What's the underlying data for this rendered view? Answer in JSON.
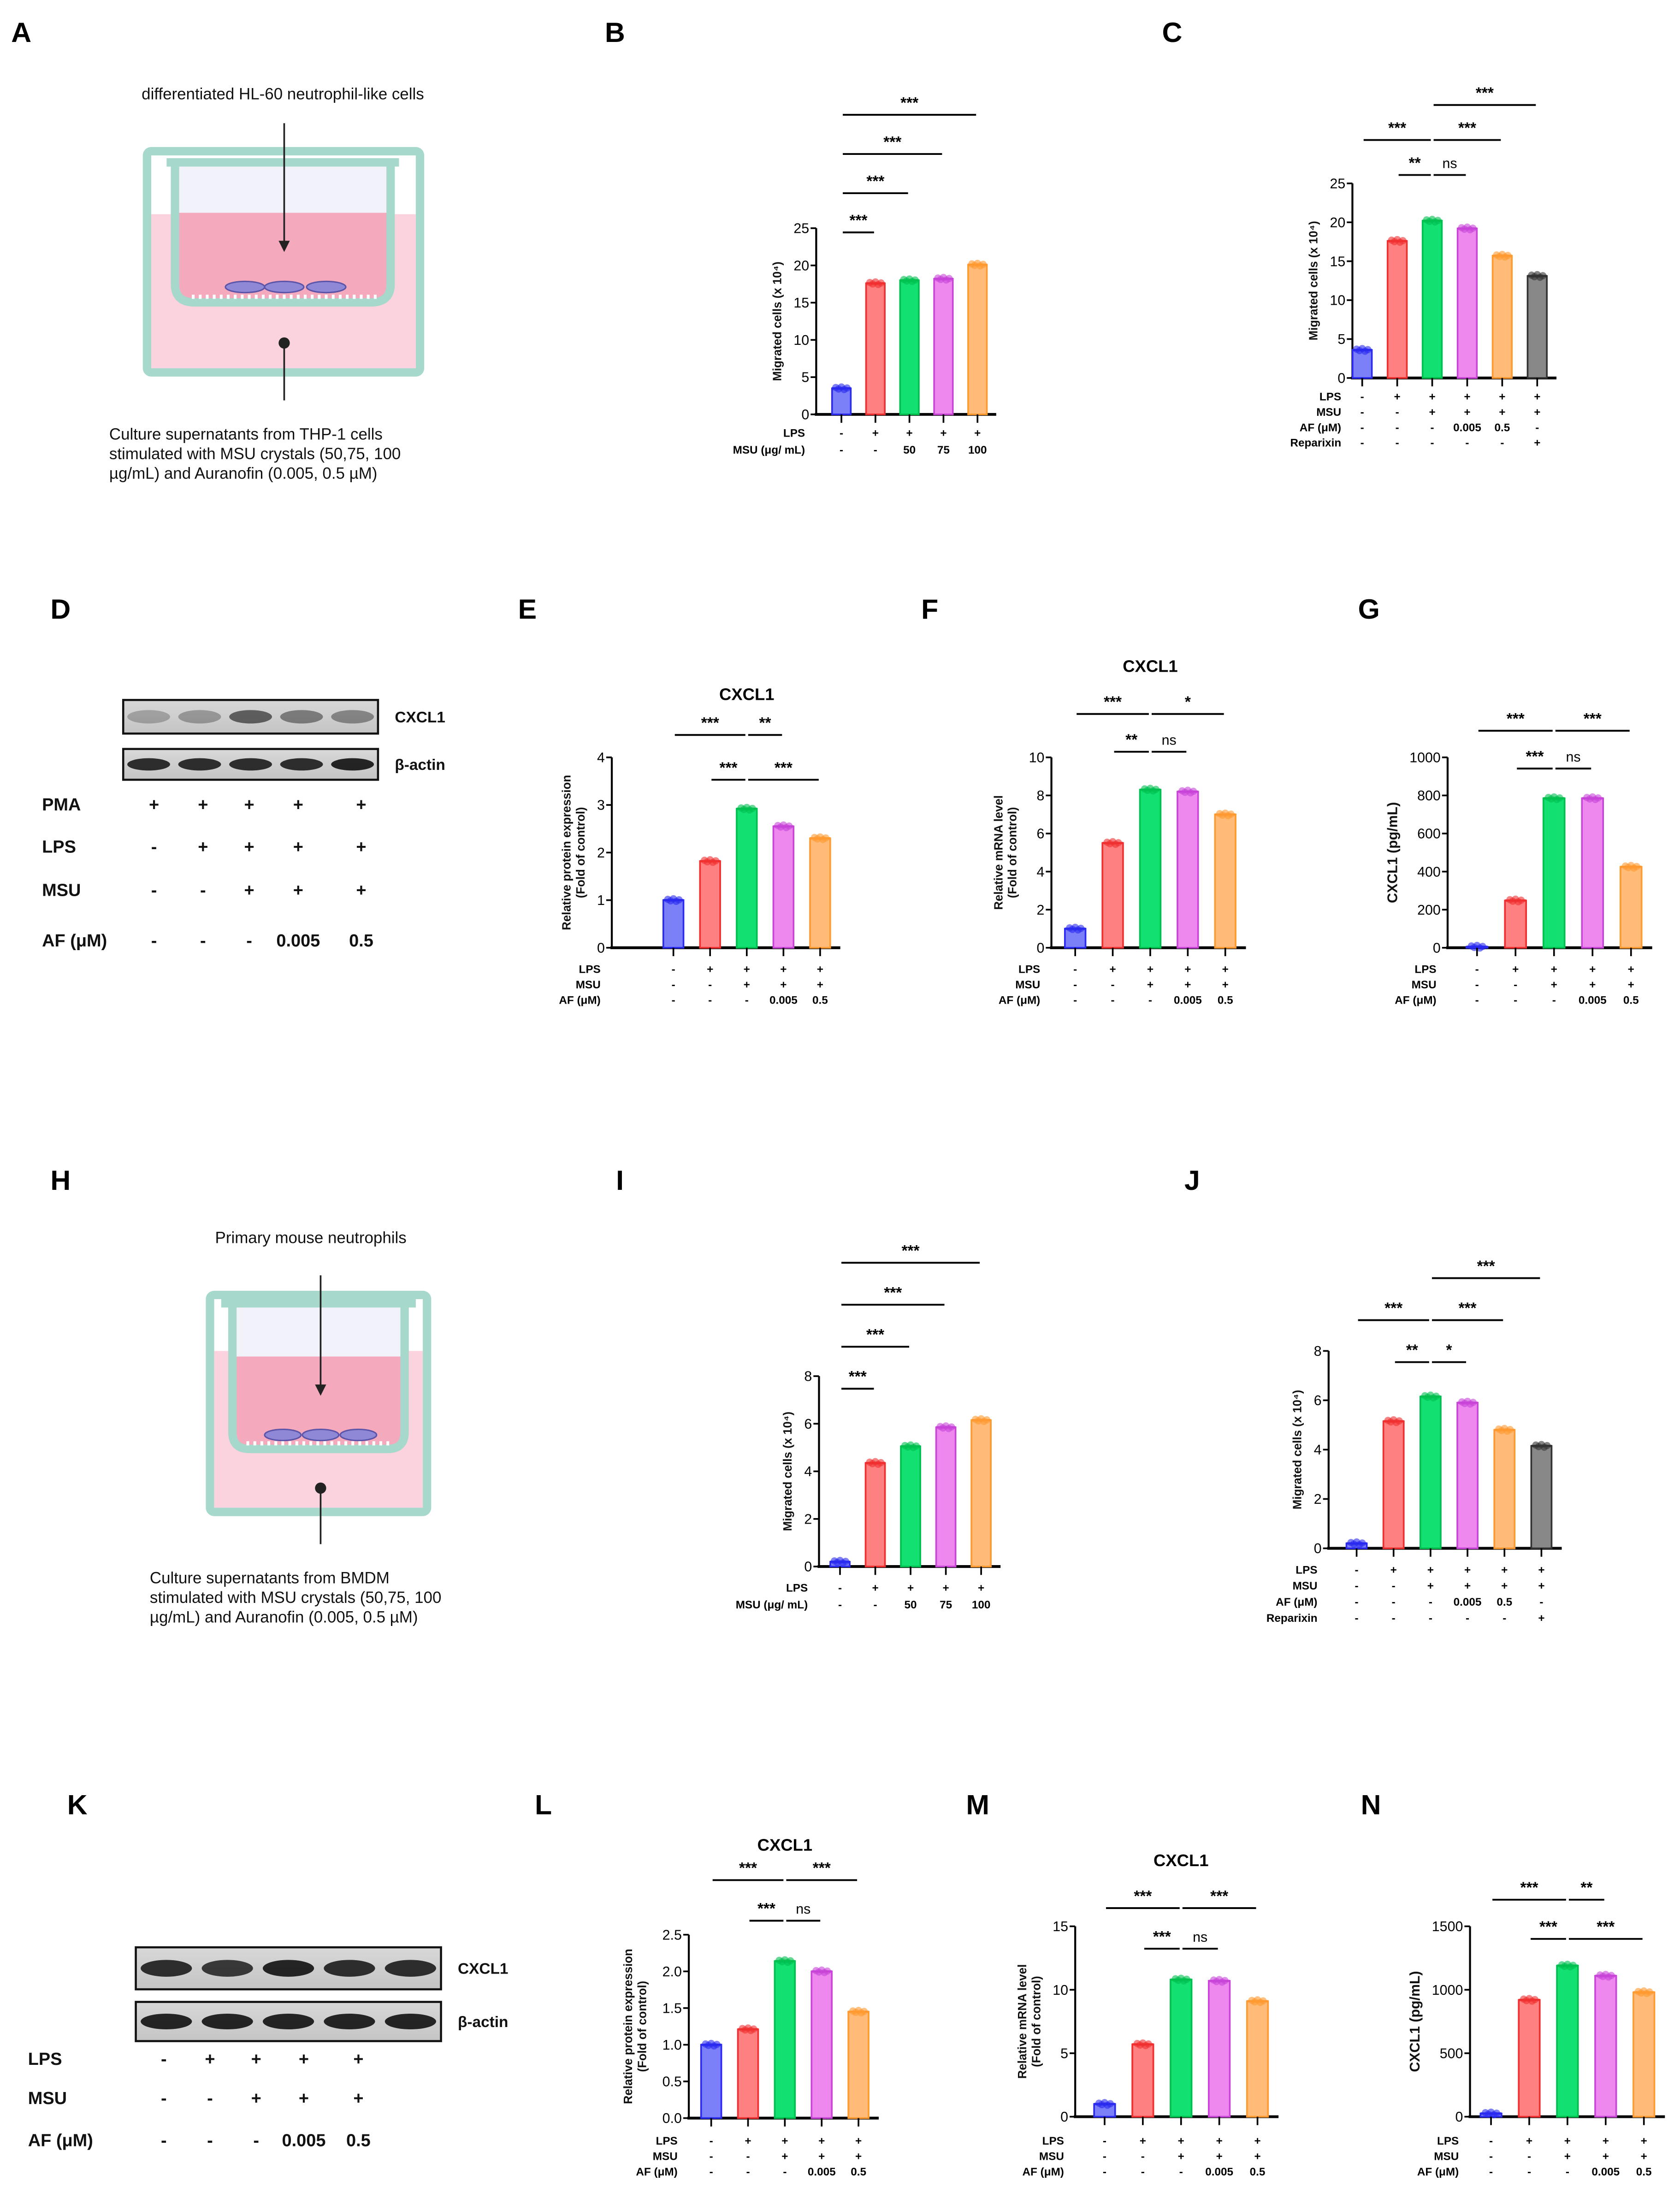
{
  "panel_letters": [
    "A",
    "B",
    "C",
    "D",
    "E",
    "F",
    "G",
    "H",
    "I",
    "J",
    "K",
    "L",
    "M",
    "N"
  ],
  "schematic_a": {
    "top_label": "differentiated HL-60 neutrophil-like cells",
    "caption": [
      "Culture supernatants from THP-1 cells",
      "stimulated with MSU crystals (50,75, 100",
      "µg/mL) and Auranofin (0.005, 0.5  µM)"
    ]
  },
  "schematic_h": {
    "top_label": "Primary mouse neutrophils",
    "caption": [
      "Culture supernatants from BMDM",
      "stimulated with MSU crystals (50,75, 100",
      "µg/mL) and Auranofin (0.005, 0.5  µM)"
    ]
  },
  "blot_d": {
    "bands": [
      "CXCL1",
      "β-actin"
    ],
    "rows": [
      {
        "label": "PMA",
        "values": [
          "+",
          "+",
          "+",
          "+",
          "+"
        ]
      },
      {
        "label": "LPS",
        "values": [
          "-",
          "+",
          "+",
          "+",
          "+"
        ]
      },
      {
        "label": "MSU",
        "values": [
          "-",
          "-",
          "+",
          "+",
          "+"
        ]
      },
      {
        "label": "AF (μM)",
        "values": [
          "-",
          "-",
          "-",
          "0.005",
          "0.5"
        ]
      }
    ]
  },
  "blot_k": {
    "bands": [
      "CXCL1",
      "β-actin"
    ],
    "rows": [
      {
        "label": "LPS",
        "values": [
          "-",
          "+",
          "+",
          "+",
          "+"
        ]
      },
      {
        "label": "MSU",
        "values": [
          "-",
          "-",
          "+",
          "+",
          "+"
        ]
      },
      {
        "label": "AF (μM)",
        "values": [
          "-",
          "-",
          "-",
          "0.005",
          "0.5"
        ]
      }
    ]
  },
  "colors": {
    "fills": [
      "#7b80f8",
      "#ff8080",
      "#12e070",
      "#ee88ee",
      "#ffbb77",
      "#888888"
    ],
    "edges": [
      "#2a2af0",
      "#f03030",
      "#00c050",
      "#c845d8",
      "#ff9a30",
      "#333333"
    ]
  },
  "chart_data": [
    {
      "id": "B",
      "type": "bar",
      "title": "",
      "ylabel": "Migrated cells (x 10⁴)",
      "ylim": [
        0,
        25
      ],
      "yticks": [
        "0",
        "5",
        "10",
        "15",
        "20",
        "25"
      ],
      "tickvals": [
        0,
        5,
        10,
        15,
        20,
        25
      ],
      "values": [
        3.5,
        17.6,
        18.0,
        18.2,
        20.1
      ],
      "conditions": [
        {
          "label": "LPS",
          "values": [
            "-",
            "+",
            "+",
            "+",
            "+"
          ]
        },
        {
          "label": "MSU (μg/ mL)",
          "values": [
            "-",
            "-",
            "50",
            "75",
            "100"
          ]
        }
      ],
      "significance": [
        {
          "pair": [
            0,
            1
          ],
          "label": "***",
          "level": 0
        },
        {
          "pair": [
            0,
            2
          ],
          "label": "***",
          "level": 1
        },
        {
          "pair": [
            0,
            3
          ],
          "label": "***",
          "level": 2
        },
        {
          "pair": [
            0,
            4
          ],
          "label": "***",
          "level": 3
        }
      ]
    },
    {
      "id": "C",
      "type": "bar",
      "title": "",
      "ylabel": "Migrated cells (x 10⁴)",
      "ylim": [
        0,
        25
      ],
      "yticks": [
        "0",
        "5",
        "10",
        "15",
        "20",
        "25"
      ],
      "tickvals": [
        0,
        5,
        10,
        15,
        20,
        25
      ],
      "values": [
        3.6,
        17.6,
        20.2,
        19.2,
        15.7,
        13.1
      ],
      "conditions": [
        {
          "label": "LPS",
          "values": [
            "-",
            "+",
            "+",
            "+",
            "+",
            "+"
          ]
        },
        {
          "label": "MSU",
          "values": [
            "-",
            "-",
            "+",
            "+",
            "+",
            "+"
          ]
        },
        {
          "label": "AF (μM)",
          "values": [
            "-",
            "-",
            "-",
            "0.005",
            "0.5",
            "-"
          ]
        },
        {
          "label": "Reparixin",
          "values": [
            "-",
            "-",
            "-",
            "-",
            "-",
            "+"
          ]
        }
      ],
      "significance": [
        {
          "pair": [
            1,
            2
          ],
          "label": "**",
          "level": 0
        },
        {
          "pair": [
            2,
            3
          ],
          "label": "ns",
          "level": 0
        },
        {
          "pair": [
            0,
            2
          ],
          "label": "***",
          "level": 1
        },
        {
          "pair": [
            2,
            4
          ],
          "label": "***",
          "level": 1
        },
        {
          "pair": [
            2,
            5
          ],
          "label": "***",
          "level": 2
        }
      ]
    },
    {
      "id": "E",
      "type": "bar",
      "title": "CXCL1",
      "ylabel": "Relative protein expression|(Fold of control)",
      "ylim": [
        0,
        4
      ],
      "yticks": [
        "0",
        "1",
        "2",
        "3",
        "4"
      ],
      "tickvals": [
        0,
        1,
        2,
        3,
        4
      ],
      "values": [
        1.0,
        1.82,
        2.92,
        2.55,
        2.3
      ],
      "conditions": [
        {
          "label": "LPS",
          "values": [
            "-",
            "+",
            "+",
            "+",
            "+"
          ]
        },
        {
          "label": "MSU",
          "values": [
            "-",
            "-",
            "+",
            "+",
            "+"
          ]
        },
        {
          "label": "AF (μM)",
          "values": [
            "-",
            "-",
            "-",
            "0.005",
            "0.5"
          ]
        }
      ],
      "significance": [
        {
          "pair": [
            1,
            2
          ],
          "label": "***",
          "level": 0
        },
        {
          "pair": [
            2,
            4
          ],
          "label": "***",
          "level": 0
        },
        {
          "pair": [
            0,
            2
          ],
          "label": "***",
          "level": 1
        },
        {
          "pair": [
            2,
            3
          ],
          "label": "**",
          "level": 1
        }
      ]
    },
    {
      "id": "F",
      "type": "bar",
      "title": "CXCL1",
      "ylabel": "Relative mRNA level|(Fold of control)",
      "ylim": [
        0,
        10
      ],
      "yticks": [
        "0",
        "2",
        "4",
        "6",
        "8",
        "10"
      ],
      "tickvals": [
        0,
        2,
        4,
        6,
        8,
        10
      ],
      "values": [
        1.0,
        5.5,
        8.3,
        8.2,
        7.0
      ],
      "conditions": [
        {
          "label": "LPS",
          "values": [
            "-",
            "+",
            "+",
            "+",
            "+"
          ]
        },
        {
          "label": "MSU",
          "values": [
            "-",
            "-",
            "+",
            "+",
            "+"
          ]
        },
        {
          "label": "AF (μM)",
          "values": [
            "-",
            "-",
            "-",
            "0.005",
            "0.5"
          ]
        }
      ],
      "significance": [
        {
          "pair": [
            1,
            2
          ],
          "label": "**",
          "level": 0
        },
        {
          "pair": [
            2,
            3
          ],
          "label": "ns",
          "level": 0
        },
        {
          "pair": [
            0,
            2
          ],
          "label": "***",
          "level": 1
        },
        {
          "pair": [
            2,
            4
          ],
          "label": "*",
          "level": 1
        }
      ]
    },
    {
      "id": "G",
      "type": "bar",
      "title": "",
      "ylabel": "CXCL1 (pg/mL)",
      "ylim": [
        0,
        1000
      ],
      "yticks": [
        "0",
        "200",
        "400",
        "600",
        "800",
        "1000"
      ],
      "tickvals": [
        0,
        200,
        400,
        600,
        800,
        1000
      ],
      "values": [
        5,
        248,
        785,
        785,
        425
      ],
      "conditions": [
        {
          "label": "LPS",
          "values": [
            "-",
            "+",
            "+",
            "+",
            "+"
          ]
        },
        {
          "label": "MSU",
          "values": [
            "-",
            "-",
            "+",
            "+",
            "+"
          ]
        },
        {
          "label": "AF (μM)",
          "values": [
            "-",
            "-",
            "-",
            "0.005",
            "0.5"
          ]
        }
      ],
      "significance": [
        {
          "pair": [
            1,
            2
          ],
          "label": "***",
          "level": 0
        },
        {
          "pair": [
            2,
            3
          ],
          "label": "ns",
          "level": 0
        },
        {
          "pair": [
            0,
            2
          ],
          "label": "***",
          "level": 1
        },
        {
          "pair": [
            2,
            4
          ],
          "label": "***",
          "level": 1
        }
      ]
    },
    {
      "id": "I",
      "type": "bar",
      "title": "",
      "ylabel": "Migrated cells (x 10⁴)",
      "ylim": [
        0,
        8
      ],
      "yticks": [
        "0",
        "2",
        "4",
        "6",
        "8"
      ],
      "tickvals": [
        0,
        2,
        4,
        6,
        8
      ],
      "values": [
        0.2,
        4.35,
        5.05,
        5.85,
        6.15
      ],
      "conditions": [
        {
          "label": "LPS",
          "values": [
            "-",
            "+",
            "+",
            "+",
            "+"
          ]
        },
        {
          "label": "MSU (μg/ mL)",
          "values": [
            "-",
            "-",
            "50",
            "75",
            "100"
          ]
        }
      ],
      "significance": [
        {
          "pair": [
            0,
            1
          ],
          "label": "***",
          "level": 0
        },
        {
          "pair": [
            0,
            2
          ],
          "label": "***",
          "level": 1
        },
        {
          "pair": [
            0,
            3
          ],
          "label": "***",
          "level": 2
        },
        {
          "pair": [
            0,
            4
          ],
          "label": "***",
          "level": 3
        }
      ]
    },
    {
      "id": "J",
      "type": "bar",
      "title": "",
      "ylabel": "Migrated cells (x 10⁴)",
      "ylim": [
        0,
        8
      ],
      "yticks": [
        "0",
        "2",
        "4",
        "6",
        "8"
      ],
      "tickvals": [
        0,
        2,
        4,
        6,
        8
      ],
      "values": [
        0.2,
        5.15,
        6.15,
        5.9,
        4.8,
        4.15
      ],
      "conditions": [
        {
          "label": "LPS",
          "values": [
            "-",
            "+",
            "+",
            "+",
            "+",
            "+"
          ]
        },
        {
          "label": "MSU",
          "values": [
            "-",
            "-",
            "+",
            "+",
            "+",
            "+"
          ]
        },
        {
          "label": "AF (μM)",
          "values": [
            "-",
            "-",
            "-",
            "0.005",
            "0.5",
            "-"
          ]
        },
        {
          "label": "Reparixin",
          "values": [
            "-",
            "-",
            "-",
            "-",
            "-",
            "+"
          ]
        }
      ],
      "significance": [
        {
          "pair": [
            1,
            2
          ],
          "label": "**",
          "level": 0
        },
        {
          "pair": [
            2,
            3
          ],
          "label": "*",
          "level": 0
        },
        {
          "pair": [
            0,
            2
          ],
          "label": "***",
          "level": 1
        },
        {
          "pair": [
            2,
            4
          ],
          "label": "***",
          "level": 1
        },
        {
          "pair": [
            2,
            5
          ],
          "label": "***",
          "level": 2
        }
      ]
    },
    {
      "id": "L",
      "type": "bar",
      "title": "CXCL1",
      "ylabel": "Relative protein expression|(Fold of control)",
      "ylim": [
        0,
        2.5
      ],
      "yticks": [
        "0.0",
        "0.5",
        "1.0",
        "1.5",
        "2.0",
        "2.5"
      ],
      "tickvals": [
        0,
        0.5,
        1,
        1.5,
        2,
        2.5
      ],
      "values": [
        1.0,
        1.21,
        2.14,
        2.0,
        1.45
      ],
      "conditions": [
        {
          "label": "LPS",
          "values": [
            "-",
            "+",
            "+",
            "+",
            "+"
          ]
        },
        {
          "label": "MSU",
          "values": [
            "-",
            "-",
            "+",
            "+",
            "+"
          ]
        },
        {
          "label": "AF (μM)",
          "values": [
            "-",
            "-",
            "-",
            "0.005",
            "0.5"
          ]
        }
      ],
      "significance": [
        {
          "pair": [
            1,
            2
          ],
          "label": "***",
          "level": 0
        },
        {
          "pair": [
            2,
            3
          ],
          "label": "ns",
          "level": 0
        },
        {
          "pair": [
            0,
            2
          ],
          "label": "***",
          "level": 1
        },
        {
          "pair": [
            2,
            4
          ],
          "label": "***",
          "level": 1
        }
      ]
    },
    {
      "id": "M",
      "type": "bar",
      "title": "CXCL1",
      "ylabel": "Relative mRNA level|(Fold of control)",
      "ylim": [
        0,
        15
      ],
      "yticks": [
        "0",
        "5",
        "10",
        "15"
      ],
      "tickvals": [
        0,
        5,
        10,
        15
      ],
      "values": [
        1.0,
        5.7,
        10.8,
        10.7,
        9.1
      ],
      "conditions": [
        {
          "label": "LPS",
          "values": [
            "-",
            "+",
            "+",
            "+",
            "+"
          ]
        },
        {
          "label": "MSU",
          "values": [
            "-",
            "-",
            "+",
            "+",
            "+"
          ]
        },
        {
          "label": "AF (μM)",
          "values": [
            "-",
            "-",
            "-",
            "0.005",
            "0.5"
          ]
        }
      ],
      "significance": [
        {
          "pair": [
            1,
            2
          ],
          "label": "***",
          "level": 0
        },
        {
          "pair": [
            2,
            3
          ],
          "label": "ns",
          "level": 0
        },
        {
          "pair": [
            0,
            2
          ],
          "label": "***",
          "level": 1
        },
        {
          "pair": [
            2,
            4
          ],
          "label": "***",
          "level": 1
        }
      ]
    },
    {
      "id": "N",
      "type": "bar",
      "title": "",
      "ylabel": "CXCL1 (pg/mL)",
      "ylim": [
        0,
        1500
      ],
      "yticks": [
        "0",
        "500",
        "1000",
        "1500"
      ],
      "tickvals": [
        0,
        500,
        1000,
        1500
      ],
      "values": [
        25,
        920,
        1190,
        1110,
        980
      ],
      "conditions": [
        {
          "label": "LPS",
          "values": [
            "-",
            "+",
            "+",
            "+",
            "+"
          ]
        },
        {
          "label": "MSU",
          "values": [
            "-",
            "-",
            "+",
            "+",
            "+"
          ]
        },
        {
          "label": "AF (μM)",
          "values": [
            "-",
            "-",
            "-",
            "0.005",
            "0.5"
          ]
        }
      ],
      "significance": [
        {
          "pair": [
            1,
            2
          ],
          "label": "***",
          "level": 0
        },
        {
          "pair": [
            2,
            4
          ],
          "label": "***",
          "level": 0
        },
        {
          "pair": [
            0,
            2
          ],
          "label": "***",
          "level": 1
        },
        {
          "pair": [
            2,
            3
          ],
          "label": "**",
          "level": 1
        }
      ]
    }
  ]
}
